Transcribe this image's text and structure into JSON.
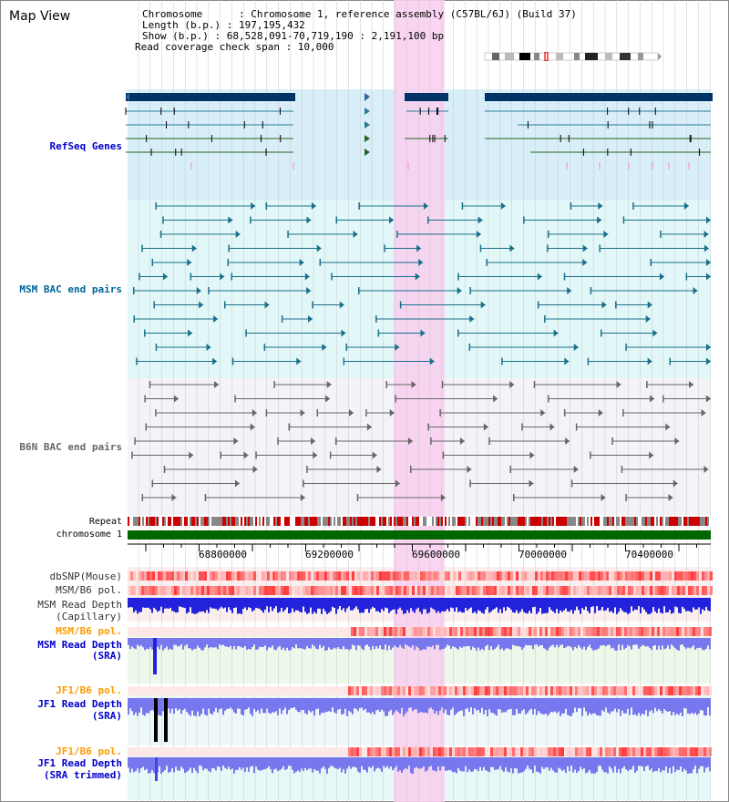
{
  "title": "Map View",
  "info": {
    "chromosome": "Chromosome      : Chromosome 1, reference assembly (C57BL/6J) (Build 37)",
    "length": "Length (b.p.) : 197,195,432",
    "show": "Show (b.p.) : 68,528,091-70,719,190 : 2,191,100 bp",
    "coverage": "Read coverage check span : 10,000"
  },
  "tracks": {
    "refseq": "RefSeq Genes",
    "msm_bac": "MSM BAC end pairs",
    "b6n_bac": "B6N BAC end pairs",
    "repeat": "Repeat",
    "chromosome": "chromosome 1",
    "dbsnp": "dbSNP(Mouse)",
    "msm_b6_pol_1": "MSM/B6 pol.",
    "msm_depth_cap_1": "MSM Read Depth",
    "msm_depth_cap_2": "(Capillary)",
    "msm_b6_pol_2": "MSM/B6 pol.",
    "msm_depth_sra_1": "MSM Read Depth",
    "msm_depth_sra_2": "(SRA)",
    "jf1_b6_pol_1": "JF1/B6 pol.",
    "jf1_depth_sra_1": "JF1 Read Depth",
    "jf1_depth_sra_2": "(SRA)",
    "jf1_b6_pol_2": "JF1/B6 pol.",
    "jf1_depth_trim_1": "JF1 Read Depth",
    "jf1_depth_trim_2": "(SRA trimmed)"
  },
  "axis_ticks": [
    "68800000",
    "69200000",
    "69600000",
    "70000000",
    "70400000"
  ],
  "colors": {
    "refseq_label": "#0000cc",
    "msm_label": "#006699",
    "b6n_label": "#666666",
    "pol_label": "#ff9900",
    "depth_label": "#0000cc",
    "highlight": "#f8d0f0",
    "chrom_bar": "#006600",
    "depth_blue": "#2222dd",
    "depth_light": "#7777ee"
  }
}
